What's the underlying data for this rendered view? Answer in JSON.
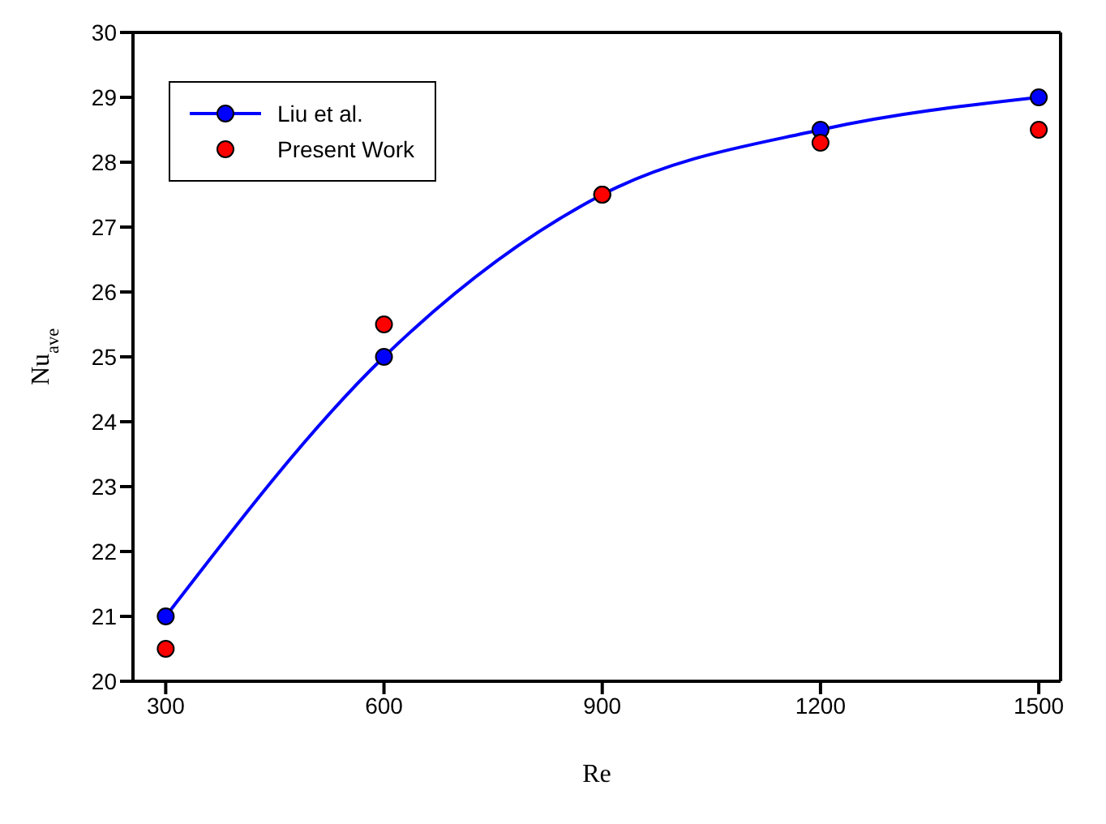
{
  "chart_data": {
    "type": "line",
    "xlabel": "Re",
    "ylabel": "Nu$_{ave}$",
    "x": [
      300,
      600,
      900,
      1200,
      1500
    ],
    "series": [
      {
        "name": "Liu et al.",
        "color": "#0000ff",
        "values": [
          21,
          25,
          27.5,
          28.5,
          29
        ]
      },
      {
        "name": "Present Work",
        "type": "scatter",
        "color": "#ff0000",
        "values": [
          20.5,
          25.5,
          27.5,
          28.3,
          28.5
        ]
      }
    ],
    "xlim": [
      255,
      1530
    ],
    "xticks": [
      300,
      600,
      900,
      1200,
      1500
    ],
    "ylim": [
      20,
      30
    ],
    "yticks": [
      20,
      21,
      22,
      23,
      24,
      25,
      26,
      27,
      28,
      29,
      30
    ],
    "grid": false,
    "legend": "top left",
    "marker": "circle",
    "line_style": "solid"
  }
}
